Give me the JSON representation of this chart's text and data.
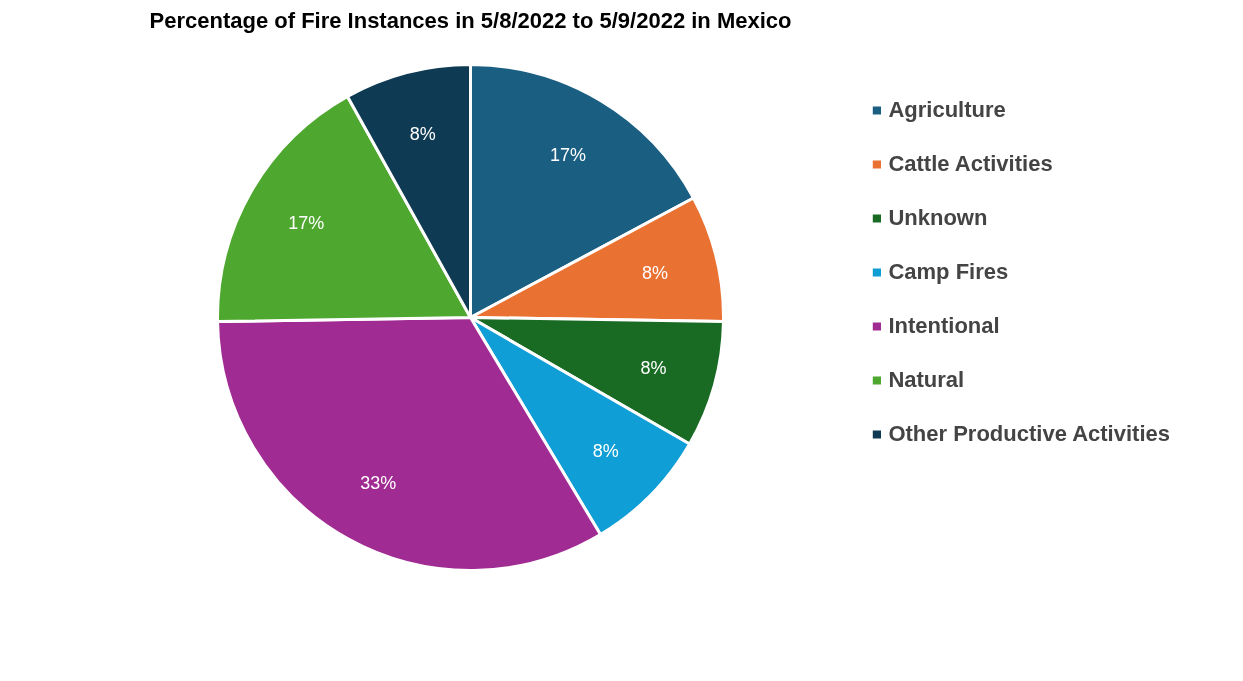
{
  "chart_data": {
    "type": "pie",
    "title": "Percentage of Fire Instances in 5/8/2022 to 5/9/2022 in Mexico",
    "categories": [
      "Agriculture",
      "Cattle Activities",
      "Unknown",
      "Camp Fires",
      "Intentional",
      "Natural",
      "Other Productive Activities"
    ],
    "values": [
      17,
      8,
      8,
      8,
      33,
      17,
      8
    ],
    "colors": [
      "#1a5f82",
      "#e97132",
      "#196b24",
      "#0f9ed5",
      "#a02b93",
      "#4ea72e",
      "#0e3a53"
    ],
    "value_labels": [
      "17%",
      "8%",
      "8%",
      "8%",
      "33%",
      "17%",
      "8%"
    ],
    "legend": "right"
  }
}
